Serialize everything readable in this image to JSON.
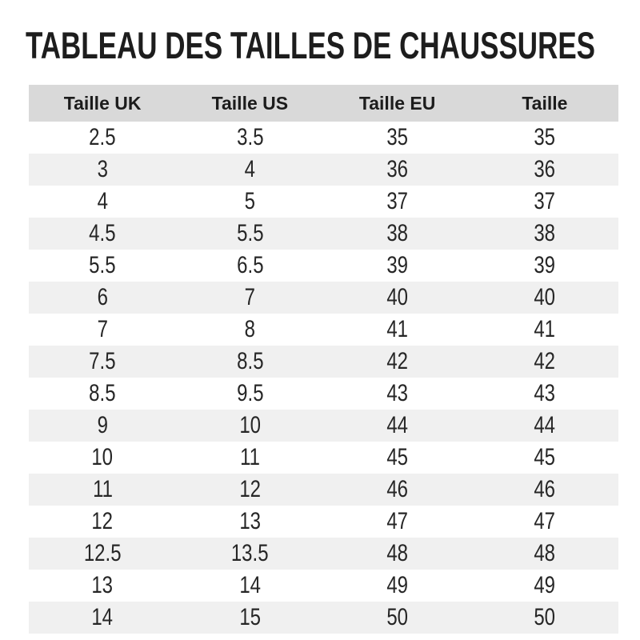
{
  "chart_data": {
    "type": "table",
    "title": "TABLEAU DES TAILLES DE CHAUSSURES",
    "columns": [
      "Taille UK",
      "Taille US",
      "Taille EU",
      "Taille"
    ],
    "rows": [
      [
        "2.5",
        "3.5",
        "35",
        "35"
      ],
      [
        "3",
        "4",
        "36",
        "36"
      ],
      [
        "4",
        "5",
        "37",
        "37"
      ],
      [
        "4.5",
        "5.5",
        "38",
        "38"
      ],
      [
        "5.5",
        "6.5",
        "39",
        "39"
      ],
      [
        "6",
        "7",
        "40",
        "40"
      ],
      [
        "7",
        "8",
        "41",
        "41"
      ],
      [
        "7.5",
        "8.5",
        "42",
        "42"
      ],
      [
        "8.5",
        "9.5",
        "43",
        "43"
      ],
      [
        "9",
        "10",
        "44",
        "44"
      ],
      [
        "10",
        "11",
        "45",
        "45"
      ],
      [
        "11",
        "12",
        "46",
        "46"
      ],
      [
        "12",
        "13",
        "47",
        "47"
      ],
      [
        "12.5",
        "13.5",
        "48",
        "48"
      ],
      [
        "13",
        "14",
        "49",
        "49"
      ],
      [
        "14",
        "15",
        "50",
        "50"
      ]
    ],
    "layout": {
      "striped": true,
      "first_data_row_background": "white",
      "column_alignment": "center"
    }
  },
  "colors": {
    "header_bg": "#d9d9d9",
    "stripe_bg": "#f0f0f0",
    "text": "#262626",
    "title": "#1d1d1d",
    "page_bg": "#ffffff"
  }
}
